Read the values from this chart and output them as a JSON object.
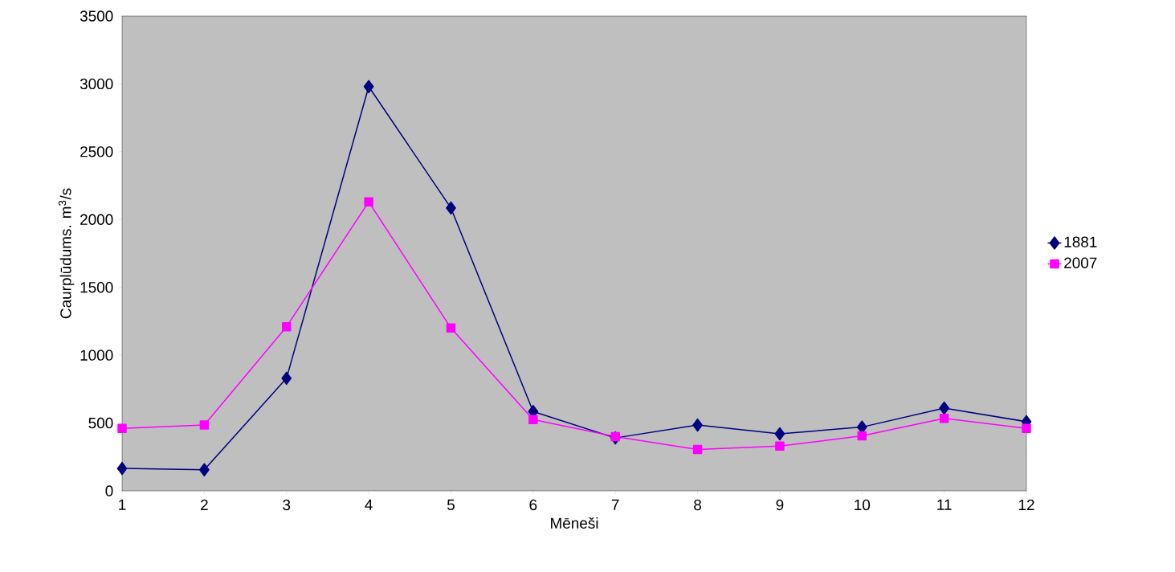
{
  "chart_data": {
    "type": "line",
    "xlabel": "Mēneši",
    "ylabel": "Caurplūdums. m$^{3}$/s",
    "categories": [
      "1",
      "2",
      "3",
      "4",
      "5",
      "6",
      "7",
      "8",
      "9",
      "10",
      "11",
      "12"
    ],
    "series": [
      {
        "name": "1881",
        "color": "#000080",
        "marker": "diamond",
        "values": [
          165,
          155,
          830,
          2980,
          2085,
          585,
          390,
          485,
          420,
          470,
          610,
          510
        ]
      },
      {
        "name": "2007",
        "color": "#ff00ff",
        "marker": "square",
        "values": [
          460,
          485,
          1210,
          2130,
          1200,
          525,
          400,
          305,
          330,
          405,
          535,
          460
        ]
      }
    ],
    "ylim": [
      0,
      3500
    ],
    "yticks": [
      0,
      500,
      1000,
      1500,
      2000,
      2500,
      3000,
      3500
    ],
    "legend": "right",
    "grid": false,
    "line_style": "solid"
  }
}
